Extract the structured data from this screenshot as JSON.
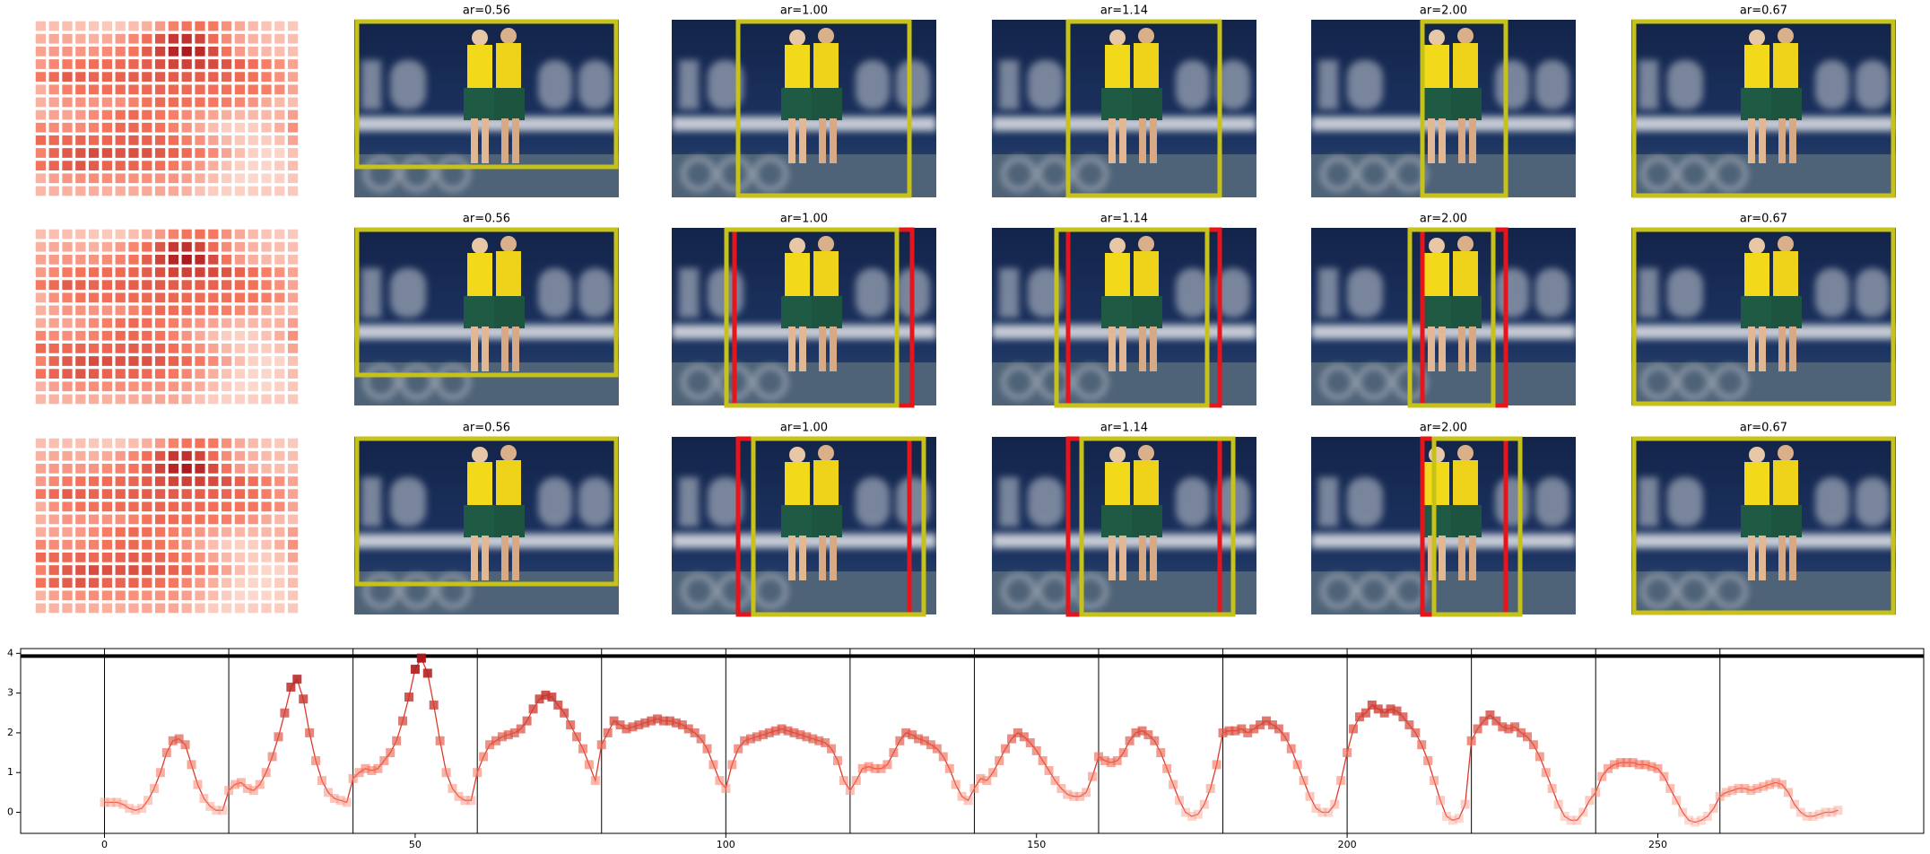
{
  "panels": {
    "titles": [
      [
        "ar=0.56",
        "ar=1.00",
        "ar=1.14",
        "ar=2.00",
        "ar=0.67"
      ],
      [
        "ar=0.56",
        "ar=1.00",
        "ar=1.14",
        "ar=2.00",
        "ar=0.67"
      ],
      [
        "ar=0.56",
        "ar=1.00",
        "ar=1.14",
        "ar=2.00",
        "ar=0.67"
      ]
    ]
  },
  "chart_data": {
    "type": "line",
    "color": "#e0392c",
    "colormap": [
      "#fde6dc",
      "#f6735b",
      "#a50f15"
    ],
    "heatmap_cols": 20,
    "x": [
      0,
      1,
      2,
      3,
      4,
      5,
      6,
      7,
      8,
      9,
      10,
      11,
      12,
      13,
      14,
      15,
      16,
      17,
      18,
      19,
      20,
      21,
      22,
      23,
      24,
      25,
      26,
      27,
      28,
      29,
      30,
      31,
      32,
      33,
      34,
      35,
      36,
      37,
      38,
      39,
      40,
      41,
      42,
      43,
      44,
      45,
      46,
      47,
      48,
      49,
      50,
      51,
      52,
      53,
      54,
      55,
      56,
      57,
      58,
      59,
      60,
      61,
      62,
      63,
      64,
      65,
      66,
      67,
      68,
      69,
      70,
      71,
      72,
      73,
      74,
      75,
      76,
      77,
      78,
      79,
      80,
      81,
      82,
      83,
      84,
      85,
      86,
      87,
      88,
      89,
      90,
      91,
      92,
      93,
      94,
      95,
      96,
      97,
      98,
      99,
      100,
      101,
      102,
      103,
      104,
      105,
      106,
      107,
      108,
      109,
      110,
      111,
      112,
      113,
      114,
      115,
      116,
      117,
      118,
      119,
      120,
      121,
      122,
      123,
      124,
      125,
      126,
      127,
      128,
      129,
      130,
      131,
      132,
      133,
      134,
      135,
      136,
      137,
      138,
      139,
      140,
      141,
      142,
      143,
      144,
      145,
      146,
      147,
      148,
      149,
      150,
      151,
      152,
      153,
      154,
      155,
      156,
      157,
      158,
      159,
      160,
      161,
      162,
      163,
      164,
      165,
      166,
      167,
      168,
      169,
      170,
      171,
      172,
      173,
      174,
      175,
      176,
      177,
      178,
      179,
      180,
      181,
      182,
      183,
      184,
      185,
      186,
      187,
      188,
      189,
      190,
      191,
      192,
      193,
      194,
      195,
      196,
      197,
      198,
      199,
      200,
      201,
      202,
      203,
      204,
      205,
      206,
      207,
      208,
      209,
      210,
      211,
      212,
      213,
      214,
      215,
      216,
      217,
      218,
      219,
      220,
      221,
      222,
      223,
      224,
      225,
      226,
      227,
      228,
      229,
      230,
      231,
      232,
      233,
      234,
      235,
      236,
      237,
      238,
      239,
      240,
      241,
      242,
      243,
      244,
      245,
      246,
      247,
      248,
      249,
      250,
      251,
      252,
      253,
      254,
      255,
      256,
      257,
      258,
      259,
      260,
      261,
      262,
      263,
      264,
      265,
      266,
      267,
      268,
      269,
      270,
      271,
      272,
      273,
      274,
      275,
      276,
      277,
      278,
      279
    ],
    "values": [
      0.25,
      0.25,
      0.25,
      0.2,
      0.1,
      0.05,
      0.1,
      0.3,
      0.6,
      1.0,
      1.5,
      1.8,
      1.85,
      1.7,
      1.2,
      0.7,
      0.35,
      0.15,
      0.05,
      0.05,
      0.55,
      0.7,
      0.75,
      0.6,
      0.55,
      0.7,
      1.0,
      1.4,
      1.9,
      2.5,
      3.15,
      3.35,
      2.85,
      2.0,
      1.3,
      0.8,
      0.5,
      0.35,
      0.3,
      0.25,
      0.85,
      1.0,
      1.1,
      1.05,
      1.1,
      1.3,
      1.5,
      1.8,
      2.3,
      2.9,
      3.6,
      3.88,
      3.5,
      2.7,
      1.8,
      1.0,
      0.6,
      0.4,
      0.3,
      0.3,
      1.0,
      1.4,
      1.7,
      1.8,
      1.9,
      1.95,
      2.0,
      2.1,
      2.3,
      2.6,
      2.85,
      2.95,
      2.9,
      2.7,
      2.5,
      2.2,
      1.9,
      1.6,
      1.2,
      0.8,
      1.7,
      2.0,
      2.3,
      2.2,
      2.1,
      2.15,
      2.2,
      2.25,
      2.3,
      2.35,
      2.3,
      2.3,
      2.25,
      2.2,
      2.1,
      2.0,
      1.85,
      1.6,
      1.2,
      0.8,
      0.6,
      1.2,
      1.6,
      1.8,
      1.85,
      1.9,
      1.95,
      2.0,
      2.05,
      2.1,
      2.05,
      2.0,
      1.95,
      1.9,
      1.85,
      1.8,
      1.75,
      1.6,
      1.3,
      0.8,
      0.55,
      0.8,
      1.1,
      1.15,
      1.1,
      1.1,
      1.2,
      1.5,
      1.8,
      2.0,
      1.95,
      1.85,
      1.8,
      1.7,
      1.6,
      1.4,
      1.1,
      0.7,
      0.4,
      0.3,
      0.6,
      0.85,
      0.8,
      1.0,
      1.3,
      1.6,
      1.85,
      2.0,
      1.9,
      1.75,
      1.55,
      1.3,
      1.05,
      0.8,
      0.6,
      0.45,
      0.4,
      0.4,
      0.5,
      0.9,
      1.4,
      1.3,
      1.25,
      1.3,
      1.5,
      1.8,
      2.0,
      2.05,
      1.95,
      1.8,
      1.5,
      1.1,
      0.7,
      0.3,
      0.0,
      -0.1,
      -0.05,
      0.2,
      0.6,
      1.2,
      2.0,
      2.05,
      2.05,
      2.1,
      2.0,
      2.1,
      2.2,
      2.3,
      2.2,
      2.1,
      1.9,
      1.6,
      1.2,
      0.8,
      0.4,
      0.1,
      0.0,
      0.0,
      0.2,
      0.8,
      1.5,
      2.1,
      2.4,
      2.5,
      2.7,
      2.6,
      2.5,
      2.6,
      2.55,
      2.4,
      2.2,
      2.0,
      1.7,
      1.3,
      0.8,
      0.3,
      -0.1,
      -0.2,
      -0.15,
      0.2,
      1.8,
      2.1,
      2.3,
      2.45,
      2.3,
      2.15,
      2.1,
      2.15,
      2.0,
      1.9,
      1.7,
      1.4,
      1.0,
      0.6,
      0.2,
      -0.1,
      -0.2,
      -0.2,
      0.0,
      0.3,
      0.5,
      0.9,
      1.1,
      1.2,
      1.25,
      1.25,
      1.25,
      1.2,
      1.2,
      1.15,
      1.1,
      0.9,
      0.6,
      0.3,
      0.0,
      -0.2,
      -0.25,
      -0.2,
      -0.1,
      0.1,
      0.4,
      0.5,
      0.55,
      0.6,
      0.6,
      0.55,
      0.6,
      0.65,
      0.7,
      0.75,
      0.7,
      0.5,
      0.2,
      0.0,
      -0.1,
      -0.1,
      -0.05,
      0.0,
      0.0,
      0.05
    ],
    "xlim": [
      -13.5,
      292.8
    ],
    "ylim": [
      -0.53,
      4.12
    ],
    "xticks": [
      0,
      50,
      100,
      150,
      200,
      250
    ],
    "yticks": [
      0,
      1,
      2,
      3,
      4
    ],
    "vlines": [
      0,
      20,
      40,
      60,
      80,
      100,
      120,
      140,
      160,
      180,
      200,
      220,
      240,
      260
    ],
    "hline": 3.93
  }
}
